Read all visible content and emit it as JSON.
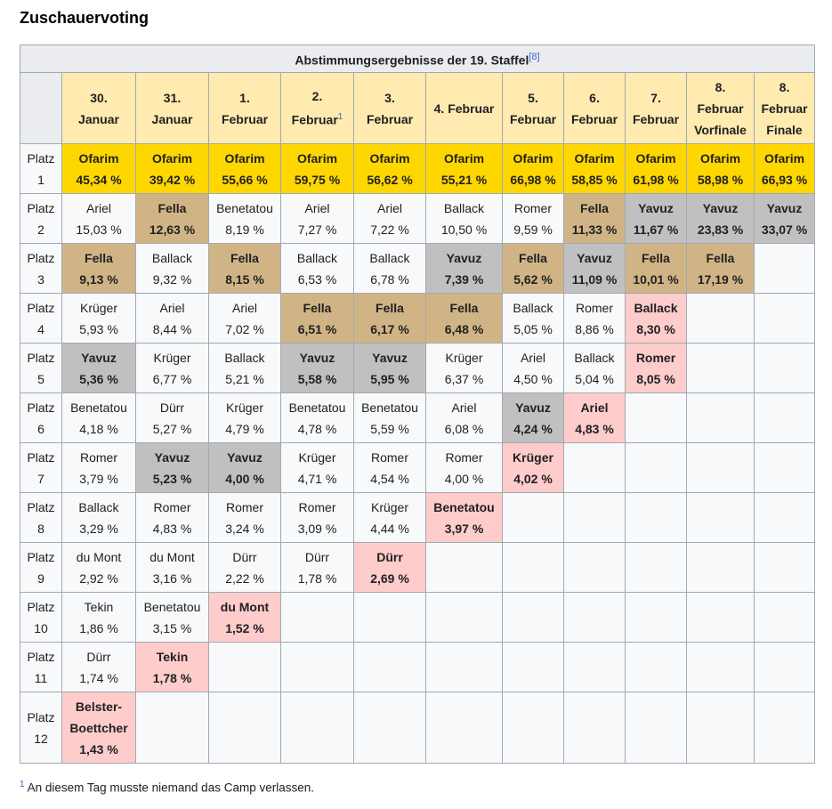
{
  "heading": "Zuschauervoting",
  "table": {
    "caption": "Abstimmungsergebnisse der 19. Staffel",
    "caption_ref": "[8]",
    "columns": [
      {
        "lines": [
          "30.",
          "Januar"
        ],
        "sup": ""
      },
      {
        "lines": [
          "31.",
          "Januar"
        ],
        "sup": ""
      },
      {
        "lines": [
          "1.",
          "Februar"
        ],
        "sup": ""
      },
      {
        "lines": [
          "2.",
          "Februar"
        ],
        "sup": "1"
      },
      {
        "lines": [
          "3.",
          "Februar"
        ],
        "sup": ""
      },
      {
        "lines": [
          "4. Februar"
        ],
        "sup": ""
      },
      {
        "lines": [
          "5.",
          "Februar"
        ],
        "sup": ""
      },
      {
        "lines": [
          "6.",
          "Februar"
        ],
        "sup": ""
      },
      {
        "lines": [
          "7.",
          "Februar"
        ],
        "sup": ""
      },
      {
        "lines": [
          "8.",
          "Februar",
          "Vorfinale"
        ],
        "sup": ""
      },
      {
        "lines": [
          "8.",
          "Februar",
          "Finale"
        ],
        "sup": ""
      }
    ],
    "rows": [
      {
        "label": [
          "Platz",
          "1"
        ],
        "cells": [
          {
            "name": "Ofarim",
            "pct": "45,34 %",
            "style": "win"
          },
          {
            "name": "Ofarim",
            "pct": "39,42 %",
            "style": "win"
          },
          {
            "name": "Ofarim",
            "pct": "55,66 %",
            "style": "win"
          },
          {
            "name": "Ofarim",
            "pct": "59,75 %",
            "style": "win"
          },
          {
            "name": "Ofarim",
            "pct": "56,62 %",
            "style": "win"
          },
          {
            "name": "Ofarim",
            "pct": "55,21 %",
            "style": "win"
          },
          {
            "name": "Ofarim",
            "pct": "66,98 %",
            "style": "win"
          },
          {
            "name": "Ofarim",
            "pct": "58,85 %",
            "style": "win"
          },
          {
            "name": "Ofarim",
            "pct": "61,98 %",
            "style": "win"
          },
          {
            "name": "Ofarim",
            "pct": "58,98 %",
            "style": "win"
          },
          {
            "name": "Ofarim",
            "pct": "66,93 %",
            "style": "win"
          }
        ]
      },
      {
        "label": [
          "Platz",
          "2"
        ],
        "cells": [
          {
            "name": "Ariel",
            "pct": "15,03 %",
            "style": "plain"
          },
          {
            "name": "Fella",
            "pct": "12,63 %",
            "style": "fella"
          },
          {
            "name": "Benetatou",
            "pct": "8,19 %",
            "style": "plain"
          },
          {
            "name": "Ariel",
            "pct": "7,27 %",
            "style": "plain"
          },
          {
            "name": "Ariel",
            "pct": "7,22 %",
            "style": "plain"
          },
          {
            "name": "Ballack",
            "pct": "10,50 %",
            "style": "plain"
          },
          {
            "name": "Romer",
            "pct": "9,59 %",
            "style": "plain"
          },
          {
            "name": "Fella",
            "pct": "11,33 %",
            "style": "fella"
          },
          {
            "name": "Yavuz",
            "pct": "11,67 %",
            "style": "yavuz"
          },
          {
            "name": "Yavuz",
            "pct": "23,83 %",
            "style": "yavuz"
          },
          {
            "name": "Yavuz",
            "pct": "33,07 %",
            "style": "yavuz"
          }
        ]
      },
      {
        "label": [
          "Platz",
          "3"
        ],
        "cells": [
          {
            "name": "Fella",
            "pct": "9,13 %",
            "style": "fella"
          },
          {
            "name": "Ballack",
            "pct": "9,32 %",
            "style": "plain"
          },
          {
            "name": "Fella",
            "pct": "8,15 %",
            "style": "fella"
          },
          {
            "name": "Ballack",
            "pct": "6,53 %",
            "style": "plain"
          },
          {
            "name": "Ballack",
            "pct": "6,78 %",
            "style": "plain"
          },
          {
            "name": "Yavuz",
            "pct": "7,39 %",
            "style": "yavuz"
          },
          {
            "name": "Fella",
            "pct": "5,62 %",
            "style": "fella"
          },
          {
            "name": "Yavuz",
            "pct": "11,09 %",
            "style": "yavuz"
          },
          {
            "name": "Fella",
            "pct": "10,01 %",
            "style": "fella"
          },
          {
            "name": "Fella",
            "pct": "17,19 %",
            "style": "fella"
          },
          {
            "name": "",
            "pct": "",
            "style": "empty"
          }
        ]
      },
      {
        "label": [
          "Platz",
          "4"
        ],
        "cells": [
          {
            "name": "Krüger",
            "pct": "5,93 %",
            "style": "plain"
          },
          {
            "name": "Ariel",
            "pct": "8,44 %",
            "style": "plain"
          },
          {
            "name": "Ariel",
            "pct": "7,02 %",
            "style": "plain"
          },
          {
            "name": "Fella",
            "pct": "6,51 %",
            "style": "fella"
          },
          {
            "name": "Fella",
            "pct": "6,17 %",
            "style": "fella"
          },
          {
            "name": "Fella",
            "pct": "6,48 %",
            "style": "fella"
          },
          {
            "name": "Ballack",
            "pct": "5,05 %",
            "style": "plain"
          },
          {
            "name": "Romer",
            "pct": "8,86 %",
            "style": "plain"
          },
          {
            "name": "Ballack",
            "pct": "8,30 %",
            "style": "out"
          },
          {
            "name": "",
            "pct": "",
            "style": "empty"
          },
          {
            "name": "",
            "pct": "",
            "style": "empty"
          }
        ]
      },
      {
        "label": [
          "Platz",
          "5"
        ],
        "cells": [
          {
            "name": "Yavuz",
            "pct": "5,36 %",
            "style": "yavuz"
          },
          {
            "name": "Krüger",
            "pct": "6,77 %",
            "style": "plain"
          },
          {
            "name": "Ballack",
            "pct": "5,21 %",
            "style": "plain"
          },
          {
            "name": "Yavuz",
            "pct": "5,58 %",
            "style": "yavuz"
          },
          {
            "name": "Yavuz",
            "pct": "5,95 %",
            "style": "yavuz"
          },
          {
            "name": "Krüger",
            "pct": "6,37 %",
            "style": "plain"
          },
          {
            "name": "Ariel",
            "pct": "4,50 %",
            "style": "plain"
          },
          {
            "name": "Ballack",
            "pct": "5,04 %",
            "style": "plain"
          },
          {
            "name": "Romer",
            "pct": "8,05 %",
            "style": "out"
          },
          {
            "name": "",
            "pct": "",
            "style": "empty"
          },
          {
            "name": "",
            "pct": "",
            "style": "empty"
          }
        ]
      },
      {
        "label": [
          "Platz",
          "6"
        ],
        "cells": [
          {
            "name": "Benetatou",
            "pct": "4,18 %",
            "style": "plain"
          },
          {
            "name": "Dürr",
            "pct": "5,27 %",
            "style": "plain"
          },
          {
            "name": "Krüger",
            "pct": "4,79 %",
            "style": "plain"
          },
          {
            "name": "Benetatou",
            "pct": "4,78 %",
            "style": "plain"
          },
          {
            "name": "Benetatou",
            "pct": "5,59 %",
            "style": "plain"
          },
          {
            "name": "Ariel",
            "pct": "6,08 %",
            "style": "plain"
          },
          {
            "name": "Yavuz",
            "pct": "4,24 %",
            "style": "yavuz"
          },
          {
            "name": "Ariel",
            "pct": "4,83 %",
            "style": "out"
          },
          {
            "name": "",
            "pct": "",
            "style": "empty"
          },
          {
            "name": "",
            "pct": "",
            "style": "empty"
          },
          {
            "name": "",
            "pct": "",
            "style": "empty"
          }
        ]
      },
      {
        "label": [
          "Platz",
          "7"
        ],
        "cells": [
          {
            "name": "Romer",
            "pct": "3,79 %",
            "style": "plain"
          },
          {
            "name": "Yavuz",
            "pct": "5,23 %",
            "style": "yavuz"
          },
          {
            "name": "Yavuz",
            "pct": "4,00 %",
            "style": "yavuz"
          },
          {
            "name": "Krüger",
            "pct": "4,71 %",
            "style": "plain"
          },
          {
            "name": "Romer",
            "pct": "4,54 %",
            "style": "plain"
          },
          {
            "name": "Romer",
            "pct": "4,00 %",
            "style": "plain"
          },
          {
            "name": "Krüger",
            "pct": "4,02 %",
            "style": "out"
          },
          {
            "name": "",
            "pct": "",
            "style": "empty"
          },
          {
            "name": "",
            "pct": "",
            "style": "empty"
          },
          {
            "name": "",
            "pct": "",
            "style": "empty"
          },
          {
            "name": "",
            "pct": "",
            "style": "empty"
          }
        ]
      },
      {
        "label": [
          "Platz",
          "8"
        ],
        "cells": [
          {
            "name": "Ballack",
            "pct": "3,29 %",
            "style": "plain"
          },
          {
            "name": "Romer",
            "pct": "4,83 %",
            "style": "plain"
          },
          {
            "name": "Romer",
            "pct": "3,24 %",
            "style": "plain"
          },
          {
            "name": "Romer",
            "pct": "3,09 %",
            "style": "plain"
          },
          {
            "name": "Krüger",
            "pct": "4,44 %",
            "style": "plain"
          },
          {
            "name": "Benetatou",
            "pct": "3,97 %",
            "style": "out"
          },
          {
            "name": "",
            "pct": "",
            "style": "empty"
          },
          {
            "name": "",
            "pct": "",
            "style": "empty"
          },
          {
            "name": "",
            "pct": "",
            "style": "empty"
          },
          {
            "name": "",
            "pct": "",
            "style": "empty"
          },
          {
            "name": "",
            "pct": "",
            "style": "empty"
          }
        ]
      },
      {
        "label": [
          "Platz",
          "9"
        ],
        "cells": [
          {
            "name": "du Mont",
            "pct": "2,92 %",
            "style": "plain"
          },
          {
            "name": "du Mont",
            "pct": "3,16 %",
            "style": "plain"
          },
          {
            "name": "Dürr",
            "pct": "2,22 %",
            "style": "plain"
          },
          {
            "name": "Dürr",
            "pct": "1,78 %",
            "style": "plain"
          },
          {
            "name": "Dürr",
            "pct": "2,69 %",
            "style": "out"
          },
          {
            "name": "",
            "pct": "",
            "style": "empty"
          },
          {
            "name": "",
            "pct": "",
            "style": "empty"
          },
          {
            "name": "",
            "pct": "",
            "style": "empty"
          },
          {
            "name": "",
            "pct": "",
            "style": "empty"
          },
          {
            "name": "",
            "pct": "",
            "style": "empty"
          },
          {
            "name": "",
            "pct": "",
            "style": "empty"
          }
        ]
      },
      {
        "label": [
          "Platz",
          "10"
        ],
        "cells": [
          {
            "name": "Tekin",
            "pct": "1,86 %",
            "style": "plain"
          },
          {
            "name": "Benetatou",
            "pct": "3,15 %",
            "style": "plain"
          },
          {
            "name": "du Mont",
            "pct": "1,52 %",
            "style": "out"
          },
          {
            "name": "",
            "pct": "",
            "style": "empty"
          },
          {
            "name": "",
            "pct": "",
            "style": "empty"
          },
          {
            "name": "",
            "pct": "",
            "style": "empty"
          },
          {
            "name": "",
            "pct": "",
            "style": "empty"
          },
          {
            "name": "",
            "pct": "",
            "style": "empty"
          },
          {
            "name": "",
            "pct": "",
            "style": "empty"
          },
          {
            "name": "",
            "pct": "",
            "style": "empty"
          },
          {
            "name": "",
            "pct": "",
            "style": "empty"
          }
        ]
      },
      {
        "label": [
          "Platz",
          "11"
        ],
        "cells": [
          {
            "name": "Dürr",
            "pct": "1,74 %",
            "style": "plain"
          },
          {
            "name": "Tekin",
            "pct": "1,78 %",
            "style": "out"
          },
          {
            "name": "",
            "pct": "",
            "style": "empty"
          },
          {
            "name": "",
            "pct": "",
            "style": "empty"
          },
          {
            "name": "",
            "pct": "",
            "style": "empty"
          },
          {
            "name": "",
            "pct": "",
            "style": "empty"
          },
          {
            "name": "",
            "pct": "",
            "style": "empty"
          },
          {
            "name": "",
            "pct": "",
            "style": "empty"
          },
          {
            "name": "",
            "pct": "",
            "style": "empty"
          },
          {
            "name": "",
            "pct": "",
            "style": "empty"
          },
          {
            "name": "",
            "pct": "",
            "style": "empty"
          }
        ]
      },
      {
        "label": [
          "Platz",
          "12"
        ],
        "cells": [
          {
            "name": "Belster-\nBoettcher",
            "pct": "1,43 %",
            "style": "out"
          },
          {
            "name": "",
            "pct": "",
            "style": "empty"
          },
          {
            "name": "",
            "pct": "",
            "style": "empty"
          },
          {
            "name": "",
            "pct": "",
            "style": "empty"
          },
          {
            "name": "",
            "pct": "",
            "style": "empty"
          },
          {
            "name": "",
            "pct": "",
            "style": "empty"
          },
          {
            "name": "",
            "pct": "",
            "style": "empty"
          },
          {
            "name": "",
            "pct": "",
            "style": "empty"
          },
          {
            "name": "",
            "pct": "",
            "style": "empty"
          },
          {
            "name": "",
            "pct": "",
            "style": "empty"
          },
          {
            "name": "",
            "pct": "",
            "style": "empty"
          }
        ]
      }
    ]
  },
  "footnote": {
    "marker": "1",
    "text": "An diesem Tag musste niemand das Camp verlassen."
  },
  "colors": {
    "winner": "#ffd700",
    "fella": "#d1b485",
    "yavuz": "#c0c0c0",
    "eliminated": "#ffcccc",
    "header": "#ffeaaf"
  }
}
